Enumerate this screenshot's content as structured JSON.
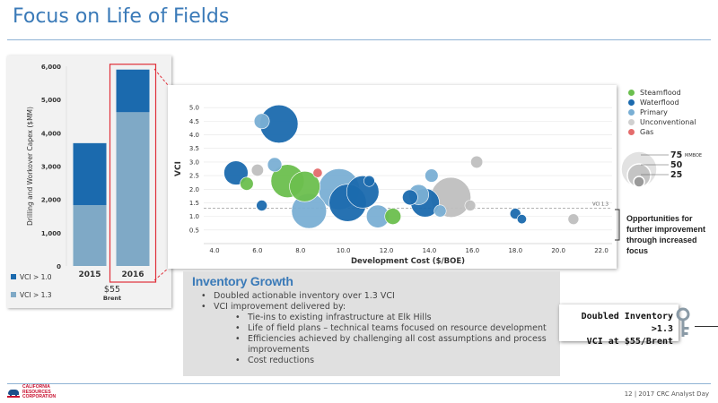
{
  "page": {
    "title": "Focus on Life of Fields",
    "footer": "12 | 2017 CRC Analyst Day"
  },
  "logo": {
    "line1": "CALIFORNIA",
    "line2": "RESOURCES",
    "line3": "CORPORATION"
  },
  "colors": {
    "title_blue": "#3a7ab8",
    "steamflood": "#6bbf4e",
    "waterflood": "#1b6aae",
    "primary": "#7aafd4",
    "unconventional": "#bfbfbf",
    "gas": "#e46c6c",
    "highlight_red": "#e0303a"
  },
  "chart_data": [
    {
      "type": "bar",
      "stacked": true,
      "ylabel": "Drilling and Workover Capex ($MM)",
      "ylim": [
        0,
        6000
      ],
      "yticks": [
        "0",
        "1,000",
        "2,000",
        "3,000",
        "4,000",
        "5,000",
        "6,000"
      ],
      "categories": [
        "2015",
        "2016"
      ],
      "series": [
        {
          "name": "VCI > 1.3",
          "values": [
            1830,
            4620
          ],
          "color": "#7fa9c6"
        },
        {
          "name": "VCI > 1.0",
          "values": [
            1860,
            1280
          ],
          "color": "#1b6aae"
        }
      ],
      "annotation": {
        "line1": "$55",
        "line2": "Brent"
      },
      "highlight_category": "2016"
    },
    {
      "type": "scatter",
      "ylabel": "VCI",
      "xlabel": "Development Cost ($/BOE)",
      "xlim": [
        3.5,
        22.5
      ],
      "ylim": [
        0,
        5.5
      ],
      "xticks": [
        "4.0",
        "6.0",
        "8.0",
        "10.0",
        "12.0",
        "14.0",
        "16.0",
        "18.0",
        "20.0",
        "22.0"
      ],
      "yticks": [
        "0.5",
        "1.0",
        "1.5",
        "2.0",
        "2.5",
        "3.0",
        "3.5",
        "4.0",
        "4.5",
        "5.0"
      ],
      "reference_line": {
        "value": 1.3,
        "label": "VCI 1.3"
      },
      "legend": {
        "position": "right",
        "items": [
          {
            "name": "Steamflood",
            "key": "steamflood"
          },
          {
            "name": "Waterflood",
            "key": "waterflood"
          },
          {
            "name": "Primary",
            "key": "primary"
          },
          {
            "name": "Unconventional",
            "key": "unconventional"
          },
          {
            "name": "Gas",
            "key": "gas"
          }
        ]
      },
      "size_legend": {
        "unit": "MMBOE",
        "values": [
          75,
          50,
          25
        ],
        "labels": [
          "75",
          "50",
          "25"
        ]
      },
      "points": [
        {
          "x": 5.0,
          "y": 2.6,
          "size": 20,
          "cat": "waterflood"
        },
        {
          "x": 5.5,
          "y": 2.2,
          "size": 6,
          "cat": "steamflood"
        },
        {
          "x": 6.0,
          "y": 2.7,
          "size": 5,
          "cat": "unconventional"
        },
        {
          "x": 6.2,
          "y": 1.4,
          "size": 4,
          "cat": "waterflood"
        },
        {
          "x": 6.2,
          "y": 4.5,
          "size": 8,
          "cat": "primary"
        },
        {
          "x": 6.8,
          "y": 2.9,
          "size": 7,
          "cat": "primary"
        },
        {
          "x": 7.0,
          "y": 4.4,
          "size": 50,
          "cat": "waterflood"
        },
        {
          "x": 7.4,
          "y": 2.3,
          "size": 38,
          "cat": "steamflood"
        },
        {
          "x": 8.2,
          "y": 2.1,
          "size": 32,
          "cat": "steamflood"
        },
        {
          "x": 8.4,
          "y": 1.2,
          "size": 42,
          "cat": "primary"
        },
        {
          "x": 8.8,
          "y": 2.6,
          "size": 3,
          "cat": "gas"
        },
        {
          "x": 9.8,
          "y": 2.0,
          "size": 58,
          "cat": "primary"
        },
        {
          "x": 10.2,
          "y": 1.5,
          "size": 48,
          "cat": "waterflood"
        },
        {
          "x": 10.9,
          "y": 1.9,
          "size": 36,
          "cat": "waterflood"
        },
        {
          "x": 11.2,
          "y": 2.3,
          "size": 4,
          "cat": "waterflood"
        },
        {
          "x": 11.6,
          "y": 1.0,
          "size": 18,
          "cat": "primary"
        },
        {
          "x": 12.3,
          "y": 1.0,
          "size": 9,
          "cat": "steamflood"
        },
        {
          "x": 13.1,
          "y": 1.7,
          "size": 8,
          "cat": "waterflood"
        },
        {
          "x": 13.5,
          "y": 1.8,
          "size": 14,
          "cat": "primary"
        },
        {
          "x": 13.8,
          "y": 1.5,
          "size": 28,
          "cat": "waterflood"
        },
        {
          "x": 14.1,
          "y": 2.5,
          "size": 6,
          "cat": "primary"
        },
        {
          "x": 14.5,
          "y": 1.2,
          "size": 5,
          "cat": "primary"
        },
        {
          "x": 15.0,
          "y": 1.7,
          "size": 55,
          "cat": "unconventional"
        },
        {
          "x": 15.9,
          "y": 1.4,
          "size": 4,
          "cat": "unconventional"
        },
        {
          "x": 16.2,
          "y": 3.0,
          "size": 5,
          "cat": "unconventional"
        },
        {
          "x": 18.0,
          "y": 1.1,
          "size": 4,
          "cat": "waterflood"
        },
        {
          "x": 18.3,
          "y": 0.9,
          "size": 3,
          "cat": "waterflood"
        },
        {
          "x": 20.7,
          "y": 0.9,
          "size": 4,
          "cat": "unconventional"
        }
      ]
    }
  ],
  "inventory": {
    "title": "Inventory Growth",
    "bullets": [
      "Doubled actionable inventory over 1.3 VCI",
      "VCI improvement delivered by:"
    ],
    "sub_bullets": [
      "Tie-ins to existing infrastructure at Elk Hills",
      "Life of field plans – technical teams focused on resource development",
      "Efficiencies achieved by challenging all cost assumptions and process improvements",
      "Cost reductions"
    ]
  },
  "opportunities_text": "Opportunities for further improvement through increased focus",
  "callout": {
    "line1": "Doubled Inventory >1.3",
    "line2": "VCI at $55/Brent"
  }
}
